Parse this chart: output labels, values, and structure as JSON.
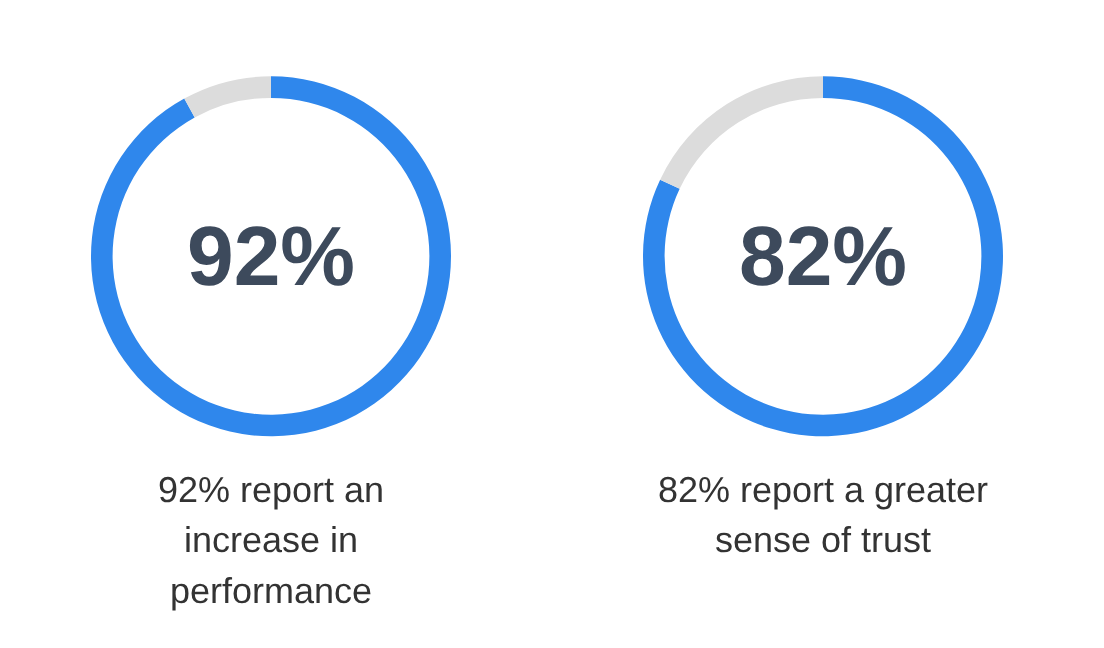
{
  "chart_data": [
    {
      "type": "donut",
      "categories": [
        null,
        null
      ],
      "values": [
        92,
        8
      ],
      "colors": [
        "#2f87ec",
        "#dcdcdc"
      ],
      "annotations": [
        "92%",
        "92% report an\nincrease in\nperformance"
      ]
    },
    {
      "type": "donut",
      "categories": [
        null,
        null
      ],
      "values": [
        82,
        18
      ],
      "colors": [
        "#2f87ec",
        "#dcdcdc"
      ],
      "annotations": [
        "82%",
        "82% report a greater\nsense of trust"
      ]
    }
  ]
}
